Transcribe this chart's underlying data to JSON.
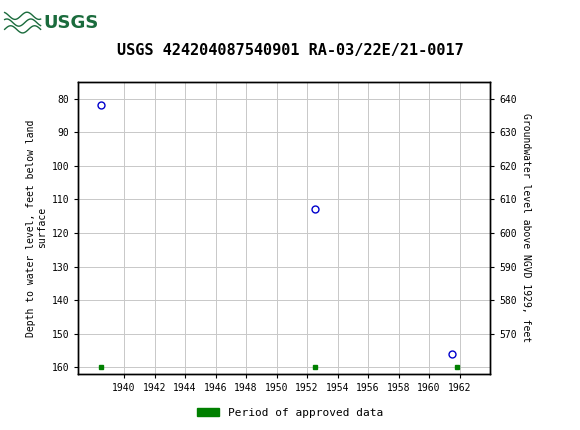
{
  "title": "USGS 424204087540901 RA-03/22E/21-0017",
  "points": [
    {
      "year": 1938.5,
      "depth": 82
    },
    {
      "year": 1952.5,
      "depth": 113
    },
    {
      "year": 1961.5,
      "depth": 156
    }
  ],
  "green_marks": [
    {
      "year": 1938.5,
      "depth": 160
    },
    {
      "year": 1952.5,
      "depth": 160
    },
    {
      "year": 1961.8,
      "depth": 160
    }
  ],
  "xlim": [
    1937,
    1964
  ],
  "ylim_left_top": 75,
  "ylim_left_bottom": 162,
  "ylim_right_top": 645,
  "ylim_right_bottom": 558,
  "yticks_left": [
    80,
    90,
    100,
    110,
    120,
    130,
    140,
    150,
    160
  ],
  "yticks_right": [
    640,
    630,
    620,
    610,
    600,
    590,
    580,
    570
  ],
  "xticks": [
    1940,
    1942,
    1944,
    1946,
    1948,
    1950,
    1952,
    1954,
    1956,
    1958,
    1960,
    1962
  ],
  "ylabel_left": "Depth to water level, feet below land\nsurface",
  "ylabel_right": "Groundwater level above NGVD 1929, feet",
  "point_color": "#0000cc",
  "grid_color": "#c8c8c8",
  "bg_color": "#ffffff",
  "header_color": "#1a6b3c",
  "legend_label": "Period of approved data",
  "legend_color": "#008000",
  "title_fontsize": 11
}
